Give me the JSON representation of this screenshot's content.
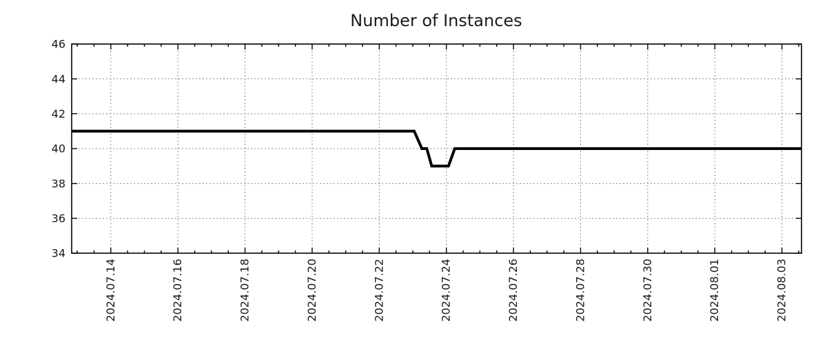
{
  "chart_data": {
    "type": "line",
    "title": "Number of Instances",
    "x_axis": {
      "start": "2024-07-12T20:00",
      "end": "2024-08-03T14:00",
      "first_major_tick": "2024-07-14T00:00",
      "major_tick_interval_days": 2,
      "minor_tick_interval_hours": 12,
      "major_tick_labels": [
        "2024.07.14",
        "2024.07.16",
        "2024.07.18",
        "2024.07.20",
        "2024.07.22",
        "2024.07.24",
        "2024.07.26",
        "2024.07.28",
        "2024.07.30",
        "2024.08.01",
        "2024.08.03"
      ],
      "label_rotation_deg": -90
    },
    "y_axis": {
      "min": 34,
      "max": 46,
      "tick_step": 2,
      "tick_labels": [
        "34",
        "36",
        "38",
        "40",
        "42",
        "44",
        "46"
      ]
    },
    "grid": {
      "style": "dotted",
      "color": "#8a8a8a",
      "on": "major-ticks-both-axes"
    },
    "series": [
      {
        "name": "instances",
        "color": "#000000",
        "line_width": 4,
        "points": [
          {
            "t": "2024-07-12T20:00",
            "v": 41
          },
          {
            "t": "2024-07-23T01:00",
            "v": 41
          },
          {
            "t": "2024-07-23T06:30",
            "v": 40
          },
          {
            "t": "2024-07-23T10:00",
            "v": 40
          },
          {
            "t": "2024-07-23T13:30",
            "v": 39
          },
          {
            "t": "2024-07-24T01:30",
            "v": 39
          },
          {
            "t": "2024-07-24T06:00",
            "v": 40
          },
          {
            "t": "2024-08-03T14:00",
            "v": 40
          }
        ]
      }
    ]
  }
}
